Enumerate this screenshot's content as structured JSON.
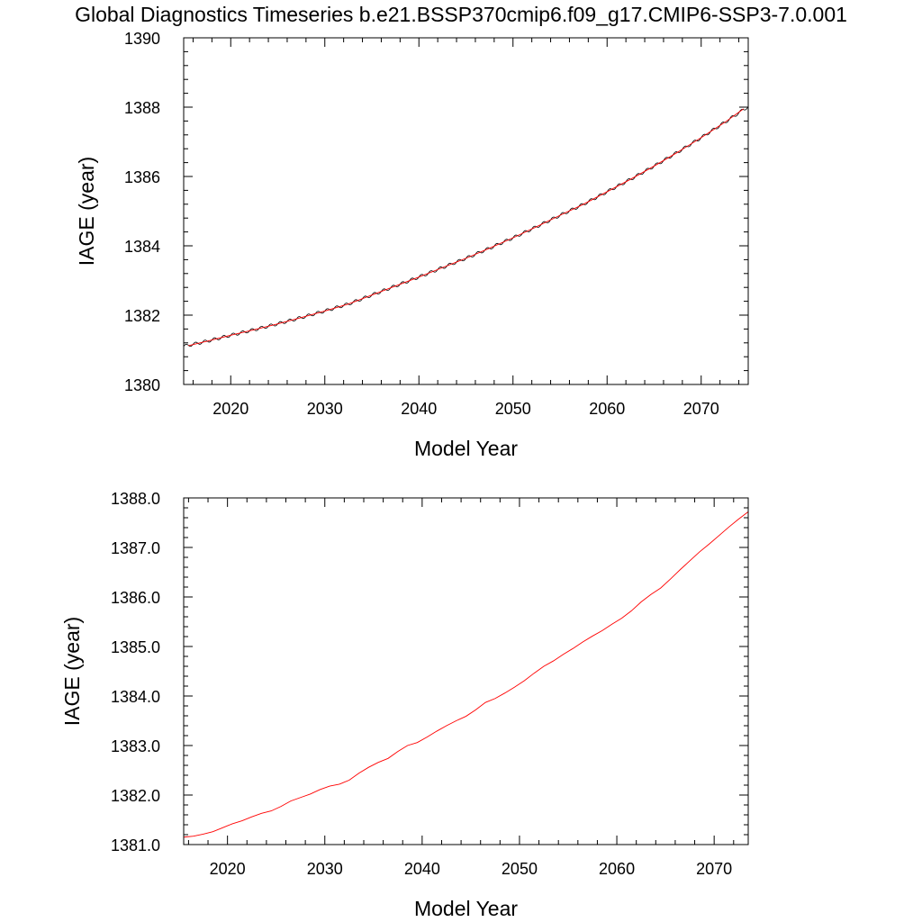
{
  "figure": {
    "title": "Global Diagnostics Timeseries b.e21.BSSP370cmip6.f09_g17.CMIP6-SSP3-7.0.001"
  },
  "chart_data": [
    {
      "type": "line",
      "title": "",
      "xlabel": "Model Year",
      "ylabel": "IAGE (year)",
      "xlim": [
        2015,
        2075
      ],
      "ylim": [
        1380,
        1390
      ],
      "xticks": [
        2020,
        2030,
        2040,
        2050,
        2060,
        2070
      ],
      "xtick_labels": [
        "2020",
        "2030",
        "2040",
        "2050",
        "2060",
        "2070"
      ],
      "yticks": [
        1380,
        1382,
        1384,
        1386,
        1388,
        1390
      ],
      "ytick_labels": [
        "1380",
        "1382",
        "1384",
        "1386",
        "1388",
        "1390"
      ],
      "grid": false,
      "series": [
        {
          "color": "#000000",
          "style": "monthly",
          "x": [
            2015.0,
            2017.5,
            2020,
            2022.5,
            2025,
            2027.5,
            2030,
            2032.5,
            2035,
            2037.5,
            2040,
            2042.5,
            2045,
            2047.5,
            2050,
            2052.5,
            2055,
            2057.5,
            2060,
            2062.5,
            2065,
            2067.5,
            2070,
            2072.5,
            2075.0
          ],
          "values": [
            1381.1,
            1381.25,
            1381.42,
            1381.58,
            1381.75,
            1381.93,
            1382.12,
            1382.32,
            1382.58,
            1382.84,
            1383.1,
            1383.37,
            1383.64,
            1383.93,
            1384.23,
            1384.55,
            1384.88,
            1385.2,
            1385.56,
            1385.92,
            1386.3,
            1386.7,
            1387.12,
            1387.56,
            1388.02
          ]
        },
        {
          "color": "#ff0000",
          "style": "annual",
          "x": [
            2015.5,
            2017.5,
            2020,
            2022.5,
            2025,
            2027.5,
            2030,
            2032.5,
            2035,
            2037.5,
            2040,
            2042.5,
            2045,
            2047.5,
            2050,
            2052.5,
            2055,
            2057.5,
            2060,
            2062.5,
            2065,
            2067.5,
            2070,
            2072.5,
            2074.5
          ],
          "values": [
            1381.12,
            1381.25,
            1381.42,
            1381.58,
            1381.75,
            1381.93,
            1382.12,
            1382.32,
            1382.58,
            1382.84,
            1383.1,
            1383.37,
            1383.64,
            1383.93,
            1384.23,
            1384.55,
            1384.88,
            1385.2,
            1385.56,
            1385.92,
            1386.3,
            1386.7,
            1387.12,
            1387.56,
            1387.95
          ]
        }
      ]
    },
    {
      "type": "line",
      "title": "",
      "xlabel": "Model Year",
      "ylabel": "IAGE (year)",
      "xlim": [
        2015.5,
        2073.5
      ],
      "ylim": [
        1381.0,
        1388.0
      ],
      "xticks": [
        2020,
        2030,
        2040,
        2050,
        2060,
        2070
      ],
      "xtick_labels": [
        "2020",
        "2030",
        "2040",
        "2050",
        "2060",
        "2070"
      ],
      "yticks": [
        1381.0,
        1382.0,
        1383.0,
        1384.0,
        1385.0,
        1386.0,
        1387.0,
        1388.0
      ],
      "ytick_labels": [
        "1381.0",
        "1382.0",
        "1383.0",
        "1384.0",
        "1385.0",
        "1386.0",
        "1387.0",
        "1388.0"
      ],
      "grid": false,
      "series": [
        {
          "color": "#ff0000",
          "style": "annual",
          "x": [
            2015.5,
            2016.5,
            2017.5,
            2018.5,
            2019.5,
            2020.5,
            2021.5,
            2022.5,
            2023.5,
            2024.5,
            2025.5,
            2026.5,
            2027.5,
            2028.5,
            2029.5,
            2030.5,
            2031.5,
            2032.5,
            2033.5,
            2034.5,
            2035.5,
            2036.5,
            2037.5,
            2038.5,
            2039.5,
            2040.5,
            2041.5,
            2042.5,
            2043.5,
            2044.5,
            2045.5,
            2046.5,
            2047.5,
            2048.5,
            2049.5,
            2050.5,
            2051.5,
            2052.5,
            2053.5,
            2054.5,
            2055.5,
            2056.5,
            2057.5,
            2058.5,
            2059.5,
            2060.5,
            2061.5,
            2062.5,
            2063.5,
            2064.5,
            2065.5,
            2066.5,
            2067.5,
            2068.5,
            2069.5,
            2070.5,
            2071.5,
            2072.5,
            2073.5
          ],
          "values": [
            1381.15,
            1381.17,
            1381.21,
            1381.26,
            1381.34,
            1381.42,
            1381.48,
            1381.56,
            1381.63,
            1381.68,
            1381.77,
            1381.88,
            1381.95,
            1382.02,
            1382.11,
            1382.18,
            1382.22,
            1382.3,
            1382.44,
            1382.56,
            1382.66,
            1382.74,
            1382.88,
            1383.0,
            1383.06,
            1383.17,
            1383.29,
            1383.4,
            1383.5,
            1383.59,
            1383.72,
            1383.87,
            1383.95,
            1384.06,
            1384.18,
            1384.31,
            1384.46,
            1384.6,
            1384.71,
            1384.84,
            1384.96,
            1385.09,
            1385.21,
            1385.32,
            1385.45,
            1385.57,
            1385.72,
            1385.9,
            1386.05,
            1386.18,
            1386.36,
            1386.55,
            1386.73,
            1386.91,
            1387.07,
            1387.24,
            1387.41,
            1387.57,
            1387.72
          ]
        }
      ]
    }
  ]
}
